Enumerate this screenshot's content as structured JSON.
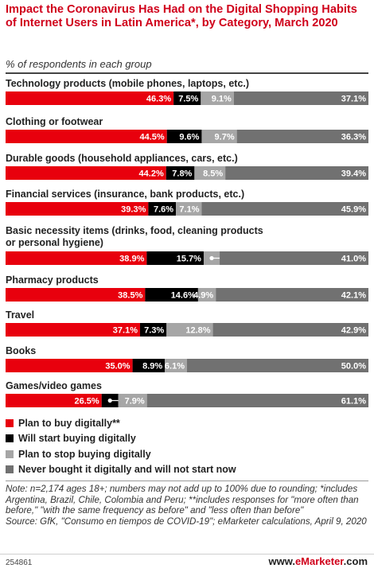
{
  "header": {
    "title": "Impact the Coronavirus Has Had on the Digital Shopping Habits of Internet Users in Latin America*, by Category, March 2020",
    "subtitle": "% of respondents in each group"
  },
  "legend": [
    {
      "label": "Plan to buy digitally**",
      "color": "#e8000d"
    },
    {
      "label": "Will start buying digitally",
      "color": "#000000"
    },
    {
      "label": "Plan to stop buying digitally",
      "color": "#a6a6a6"
    },
    {
      "label": "Never bought it digitally and will not start now",
      "color": "#717171"
    }
  ],
  "notes": {
    "text": "Note: n=2,174 ages 18+; numbers may not add up to 100% due to rounding; *includes Argentina, Brazil, Chile, Colombia and Peru; **includes responses for \"more often than before,\" \"with the same frequency as before\" and \"less often than before\"",
    "source": "Source: GfK, \"Consumo en tiempos de COVID-19\"; eMarketer calculations, April 9, 2020"
  },
  "footer": {
    "chart_id": "254861",
    "brand_prefix": "www.",
    "brand_name": "eMarketer",
    "brand_suffix": ".com"
  },
  "chart_data": {
    "type": "bar",
    "orientation": "horizontal",
    "stacked": true,
    "unit": "%",
    "categories": [
      "Technology products (mobile phones, laptops, etc.)",
      "Clothing or footwear",
      "Durable goods (household appliances, cars, etc.)",
      "Financial services (insurance, bank products, etc.)",
      "Basic necessity items (drinks, food, cleaning products or personal hygiene)",
      "Pharmacy products",
      "Travel",
      "Books",
      "Games/video games"
    ],
    "series": [
      {
        "name": "Plan to buy digitally**",
        "color": "#e8000d",
        "values": [
          46.3,
          44.5,
          44.2,
          39.3,
          38.9,
          38.5,
          37.1,
          35.0,
          26.5
        ]
      },
      {
        "name": "Will start buying digitally",
        "color": "#000000",
        "values": [
          7.5,
          9.6,
          7.8,
          7.6,
          15.7,
          14.6,
          7.3,
          8.9,
          4.6
        ]
      },
      {
        "name": "Plan to stop buying digitally",
        "color": "#a6a6a6",
        "values": [
          9.1,
          9.7,
          8.5,
          7.1,
          4.4,
          4.9,
          12.8,
          6.1,
          7.9
        ]
      },
      {
        "name": "Never bought it digitally and will not start now",
        "color": "#717171",
        "values": [
          37.1,
          36.3,
          39.4,
          45.9,
          41.0,
          42.1,
          42.9,
          50.0,
          61.1
        ]
      }
    ],
    "legend_position": "bottom",
    "grid": false
  }
}
